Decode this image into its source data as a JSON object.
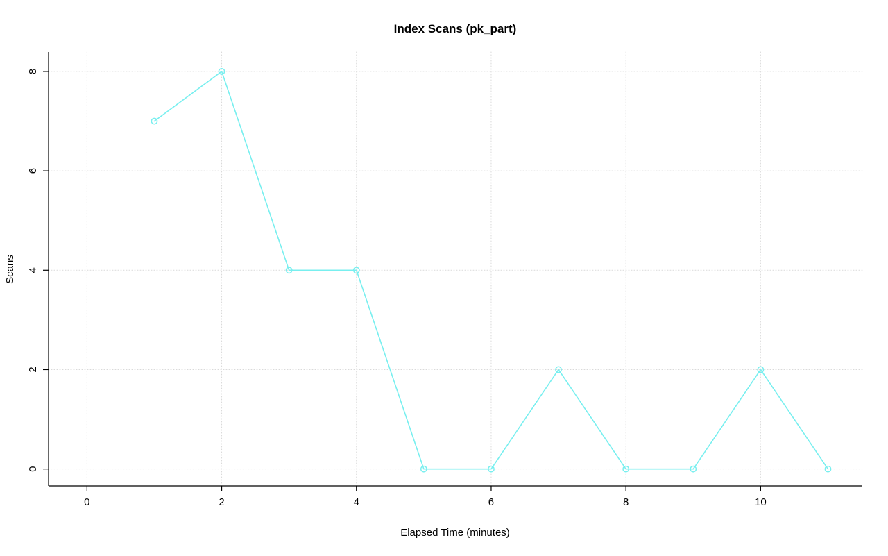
{
  "chart_data": {
    "type": "line",
    "title": "Index Scans (pk_part)",
    "xlabel": "Elapsed Time (minutes)",
    "ylabel": "Scans",
    "x": [
      1,
      2,
      3,
      4,
      5,
      6,
      7,
      8,
      9,
      10,
      11
    ],
    "y": [
      7,
      8,
      4,
      4,
      0,
      0,
      2,
      0,
      0,
      2,
      0
    ],
    "xticks": [
      0,
      2,
      4,
      6,
      8,
      10
    ],
    "yticks": [
      0,
      2,
      4,
      6,
      8
    ],
    "xlim": [
      -0.57,
      11.51
    ],
    "ylim": [
      -0.34,
      8.39
    ],
    "grid": true,
    "legend": "none",
    "marker": "open-circle",
    "line_color": "#78EFEF",
    "grid_color": "#D9D9D9",
    "axis_color": "#000000",
    "background": "#FFFFFF"
  }
}
